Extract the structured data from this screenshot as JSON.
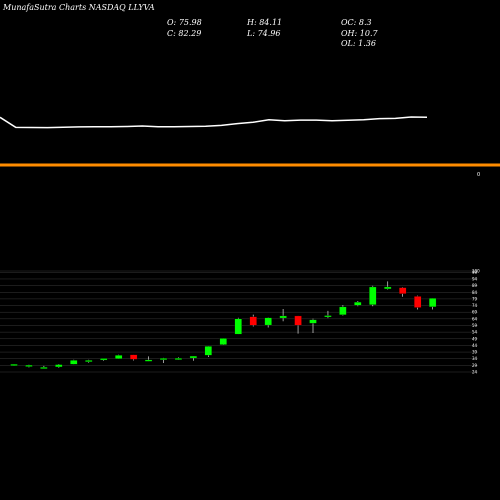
{
  "header": {
    "title": "MunafaSutra Charts NASDAQ LLYVA"
  },
  "stats": {
    "open_label": "O:",
    "open": "75.98",
    "high_label": "H:",
    "high": "84.11",
    "oc_label": "OC:",
    "oc": "8.3",
    "close_label": "C:",
    "close": "82.29",
    "low_label": "L:",
    "low": "74.96",
    "oh_label": "OH:",
    "oh": "10.7",
    "ol_label": "OL:",
    "ol": "1.36"
  },
  "colors": {
    "up": "#00ff00",
    "down": "#ff0000",
    "line": "#ffffff",
    "divider": "#ff8c00",
    "grid": "#ffffff"
  },
  "volume_axis_label": "0",
  "chart_data": [
    {
      "type": "line",
      "x": [
        1,
        2,
        3,
        4,
        5,
        6,
        7,
        8,
        9,
        10,
        11,
        12,
        13,
        14,
        15,
        16,
        17,
        18,
        19,
        20,
        21,
        22,
        23,
        24,
        25,
        26,
        27,
        28
      ],
      "values": [
        32.5,
        44.5,
        44.6,
        44.8,
        44.3,
        43.9,
        43.8,
        43.7,
        43.5,
        42.8,
        43.8,
        43.7,
        43.4,
        43.1,
        42.2,
        40.0,
        38.4,
        35.5,
        36.6,
        35.8,
        35.8,
        36.6,
        36.0,
        35.5,
        34.1,
        33.8,
        32.1,
        32.4
      ],
      "ylim": [
        0,
        100
      ]
    },
    {
      "type": "candlestick",
      "title": "",
      "y_ticks": [
        "100",
        "99",
        "94",
        "89",
        "84",
        "79",
        "74",
        "69",
        "64",
        "59",
        "54",
        "49",
        "44",
        "39",
        "34",
        "29",
        "24"
      ],
      "ylim": [
        24,
        100
      ],
      "candles": [
        {
          "x": 1,
          "o": 29.0,
          "h": 29.8,
          "l": 28.6,
          "c": 29.9
        },
        {
          "x": 2,
          "o": 28.2,
          "h": 29.5,
          "l": 27.5,
          "c": 29.2
        },
        {
          "x": 3,
          "o": 27.5,
          "h": 28.6,
          "l": 27.1,
          "c": 27.6
        },
        {
          "x": 4,
          "o": 27.8,
          "h": 30.0,
          "l": 27.2,
          "c": 29.6
        },
        {
          "x": 5,
          "o": 29.8,
          "h": 33.2,
          "l": 29.6,
          "c": 32.8
        },
        {
          "x": 6,
          "o": 32.2,
          "h": 33.2,
          "l": 31.0,
          "c": 32.8
        },
        {
          "x": 7,
          "o": 33.0,
          "h": 34.2,
          "l": 32.4,
          "c": 34.2
        },
        {
          "x": 8,
          "o": 34.0,
          "h": 37.0,
          "l": 33.9,
          "c": 36.6
        },
        {
          "x": 9,
          "o": 37.0,
          "h": 36.5,
          "l": 32.7,
          "c": 33.5
        },
        {
          "x": 10,
          "o": 32.3,
          "h": 35.8,
          "l": 32.0,
          "c": 33.1
        },
        {
          "x": 11,
          "o": 33.6,
          "h": 34.6,
          "l": 30.8,
          "c": 34.3
        },
        {
          "x": 12,
          "o": 33.8,
          "h": 35.0,
          "l": 33.1,
          "c": 34.4
        },
        {
          "x": 13,
          "o": 34.5,
          "h": 35.8,
          "l": 32.5,
          "c": 36.0
        },
        {
          "x": 14,
          "o": 36.6,
          "h": 43.5,
          "l": 35.3,
          "c": 43.3
        },
        {
          "x": 15,
          "o": 44.6,
          "h": 49.3,
          "l": 44.3,
          "c": 49.3
        },
        {
          "x": 16,
          "o": 52.5,
          "h": 64.8,
          "l": 52.6,
          "c": 64.0
        },
        {
          "x": 17,
          "o": 65.6,
          "h": 67.2,
          "l": 58.2,
          "c": 59.2
        },
        {
          "x": 18,
          "o": 59.3,
          "h": 65.1,
          "l": 57.5,
          "c": 64.8
        },
        {
          "x": 19,
          "o": 64.6,
          "h": 71.4,
          "l": 62.2,
          "c": 66.2
        },
        {
          "x": 20,
          "o": 66.2,
          "h": 65.5,
          "l": 52.9,
          "c": 59.2
        },
        {
          "x": 21,
          "o": 60.6,
          "h": 64.2,
          "l": 53.3,
          "c": 63.3
        },
        {
          "x": 22,
          "o": 65.5,
          "h": 70.0,
          "l": 64.5,
          "c": 66.5
        },
        {
          "x": 23,
          "o": 67.0,
          "h": 74.3,
          "l": 66.5,
          "c": 73.0
        },
        {
          "x": 24,
          "o": 74.2,
          "h": 77.4,
          "l": 73.5,
          "c": 76.6
        },
        {
          "x": 25,
          "o": 74.6,
          "h": 88.9,
          "l": 73.5,
          "c": 88.0
        },
        {
          "x": 26,
          "o": 86.5,
          "h": 92.2,
          "l": 86.0,
          "c": 88.0
        },
        {
          "x": 27,
          "o": 87.5,
          "h": 87.9,
          "l": 80.6,
          "c": 82.9
        },
        {
          "x": 28,
          "o": 80.9,
          "h": 81.5,
          "l": 71.0,
          "c": 72.5
        },
        {
          "x": 29,
          "o": 73.0,
          "h": 79.5,
          "l": 71.0,
          "c": 79.5
        }
      ]
    }
  ]
}
